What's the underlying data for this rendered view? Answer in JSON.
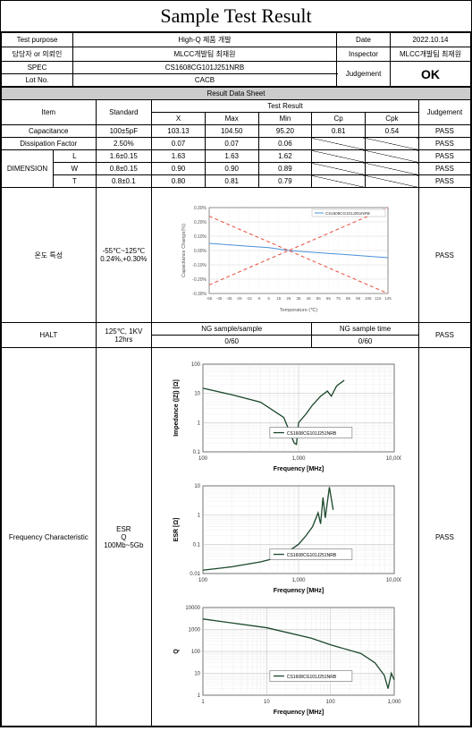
{
  "title": "Sample Test Result",
  "header": {
    "test_purpose_label": "Test purpose",
    "test_purpose_value": "High-Q 제품 개발",
    "date_label": "Date",
    "date_value": "2022.10.14",
    "person_label": "담당자 or 의뢰인",
    "person_value": "MLCC개발팀 최재원",
    "inspector_label": "Inspector",
    "inspector_value": "MLCC개발팀 최재원",
    "spec_label": "SPEC",
    "spec_value": "CS1608CG101J251NRB",
    "judgement_label": "Judgement",
    "judgement_value": "OK",
    "lotno_label": "Lot No.",
    "lotno_value": "CACB"
  },
  "result_sheet_label": "Result Data Sheet",
  "table_headers": {
    "item": "Item",
    "standard": "Standard",
    "test_result": "Test Result",
    "x": "X",
    "max": "Max",
    "min": "Min",
    "cp": "Cp",
    "cpk": "Cpk",
    "judgement": "Judgement"
  },
  "rows": [
    {
      "item": "Capacitance",
      "subitem": "",
      "std": "100±5pF",
      "x": "103.13",
      "max": "104.50",
      "min": "95.20",
      "cp": "0.81",
      "cpk": "0.54",
      "judge": "PASS"
    },
    {
      "item": "Dissipation Factor",
      "subitem": "",
      "std": "2.50%",
      "x": "0.07",
      "max": "0.07",
      "min": "0.06",
      "cp": "slash",
      "cpk": "slash",
      "judge": "PASS"
    },
    {
      "item": "DIMENSION",
      "subitem": "L",
      "std": "1.6±0.15",
      "x": "1.63",
      "max": "1.63",
      "min": "1.62",
      "cp": "slash",
      "cpk": "slash",
      "judge": "PASS"
    },
    {
      "item": "",
      "subitem": "W",
      "std": "0.8±0.15",
      "x": "0.90",
      "max": "0.90",
      "min": "0.89",
      "cp": "slash",
      "cpk": "slash",
      "judge": "PASS"
    },
    {
      "item": "",
      "subitem": "T",
      "std": "0.8±0.1",
      "x": "0.80",
      "max": "0.81",
      "min": "0.79",
      "cp": "slash",
      "cpk": "slash",
      "judge": "PASS"
    }
  ],
  "temp_char": {
    "label": "온도 특성",
    "std1": "-55℃~125℃",
    "std2": "0.24%,+0.30%",
    "judge": "PASS",
    "chart": {
      "legend": "CS1608CG101J251NRB",
      "xlabel": "Temperature (℃)",
      "ylabel": "Capacitance Change(%)",
      "xlim": [
        -55,
        125
      ],
      "ylim": [
        -0.3,
        0.3
      ],
      "xticks": [
        -55,
        -45,
        -35,
        -25,
        -15,
        -5,
        5,
        15,
        25,
        35,
        45,
        55,
        65,
        75,
        85,
        95,
        105,
        115,
        125
      ],
      "yticks": [
        "0.30%",
        "0.20%",
        "0.10%",
        "0.00%",
        "-0.10%",
        "-0.20%",
        "-0.30%"
      ],
      "series_blue": {
        "color": "#4a90d9",
        "data": [
          [
            -55,
            0.05
          ],
          [
            -35,
            0.04
          ],
          [
            -15,
            0.03
          ],
          [
            5,
            0.02
          ],
          [
            25,
            0
          ],
          [
            45,
            -0.01
          ],
          [
            65,
            -0.02
          ],
          [
            85,
            -0.03
          ],
          [
            105,
            -0.04
          ],
          [
            125,
            -0.05
          ]
        ]
      },
      "series_red1": {
        "color": "#e74c3c",
        "dash": "4,3",
        "data": [
          [
            -55,
            -0.24
          ],
          [
            125,
            0.3
          ]
        ]
      },
      "series_red2": {
        "color": "#e74c3c",
        "dash": "4,3",
        "data": [
          [
            -55,
            0.24
          ],
          [
            125,
            -0.3
          ]
        ]
      }
    }
  },
  "halt": {
    "label": "HALT",
    "std1": "125℃, 1KV",
    "std2": "12hrs",
    "col1_label": "NG sample/sample",
    "col1_value": "0/60",
    "col2_label": "NG sample time",
    "col2_value": "0/60",
    "judge": "PASS"
  },
  "freq": {
    "label": "Frequency Characteristic",
    "std1": "ESR",
    "std2": "Q",
    "std3": "100Mb~5Gb",
    "judge": "PASS",
    "chart1": {
      "legend": "CS1608CG101J251NRB",
      "xlabel": "Frequency [MHz]",
      "ylabel": "Impedance (|Z|) [Ω]",
      "xlim_log": [
        100,
        10000
      ],
      "ylim_log": [
        0.1,
        100
      ],
      "line_color": "#1a472a",
      "data": [
        [
          100,
          15
        ],
        [
          200,
          9
        ],
        [
          400,
          5
        ],
        [
          700,
          1.5
        ],
        [
          900,
          0.2
        ],
        [
          950,
          0.18
        ],
        [
          1000,
          1
        ],
        [
          1200,
          2
        ],
        [
          1400,
          4
        ],
        [
          1700,
          8
        ],
        [
          2000,
          12
        ],
        [
          2200,
          8
        ],
        [
          2500,
          18
        ],
        [
          3000,
          28
        ]
      ]
    },
    "chart2": {
      "legend": "CS1608CG101J251NRB",
      "xlabel": "Frequency [MHz]",
      "ylabel": "ESR [Ω]",
      "xlim_log": [
        100,
        10000
      ],
      "ylim_log": [
        0.01,
        10
      ],
      "line_color": "#1a472a",
      "data": [
        [
          100,
          0.013
        ],
        [
          200,
          0.017
        ],
        [
          400,
          0.025
        ],
        [
          600,
          0.035
        ],
        [
          800,
          0.06
        ],
        [
          1000,
          0.1
        ],
        [
          1200,
          0.2
        ],
        [
          1400,
          0.4
        ],
        [
          1600,
          1.2
        ],
        [
          1700,
          0.5
        ],
        [
          1800,
          4
        ],
        [
          1900,
          0.8
        ],
        [
          2100,
          9
        ],
        [
          2300,
          1.5
        ]
      ]
    },
    "chart3": {
      "legend": "CS1608CG101J251NRB",
      "xlabel": "Frequency [MHz]",
      "ylabel": "Q",
      "xlim_log": [
        0,
        1000
      ],
      "ylim_log": [
        1,
        10000
      ],
      "line_color": "#1a472a",
      "data": [
        [
          1,
          3000
        ],
        [
          10,
          1200
        ],
        [
          50,
          400
        ],
        [
          100,
          200
        ],
        [
          300,
          80
        ],
        [
          500,
          30
        ],
        [
          700,
          8
        ],
        [
          800,
          2
        ],
        [
          900,
          10
        ],
        [
          1000,
          5
        ]
      ]
    }
  }
}
